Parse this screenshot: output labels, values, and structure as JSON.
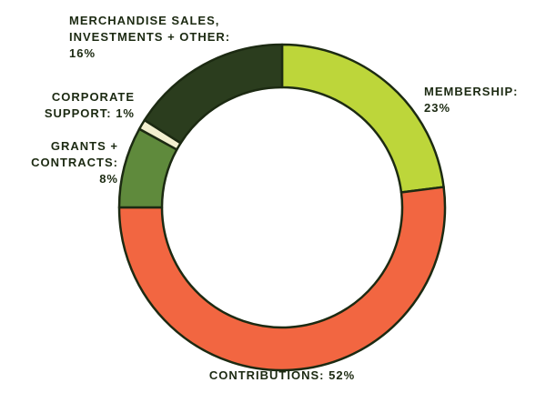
{
  "chart_data": {
    "type": "donut",
    "categories": [
      "MEMBERSHIP:",
      "CONTRIBUTIONS:",
      "GRANTS + CONTRACTS:",
      "CORPORATE SUPPORT:",
      "MERCHANDISE SALES, INVESTMENTS + OTHER:"
    ],
    "values": [
      23,
      52,
      8,
      1,
      16
    ],
    "value_labels": [
      "23%",
      "52%",
      "8%",
      "1%",
      "16%"
    ],
    "colors": [
      "#bdd63a",
      "#f26641",
      "#5f8a3c",
      "#f3f0d0",
      "#2b3d1e"
    ]
  }
}
